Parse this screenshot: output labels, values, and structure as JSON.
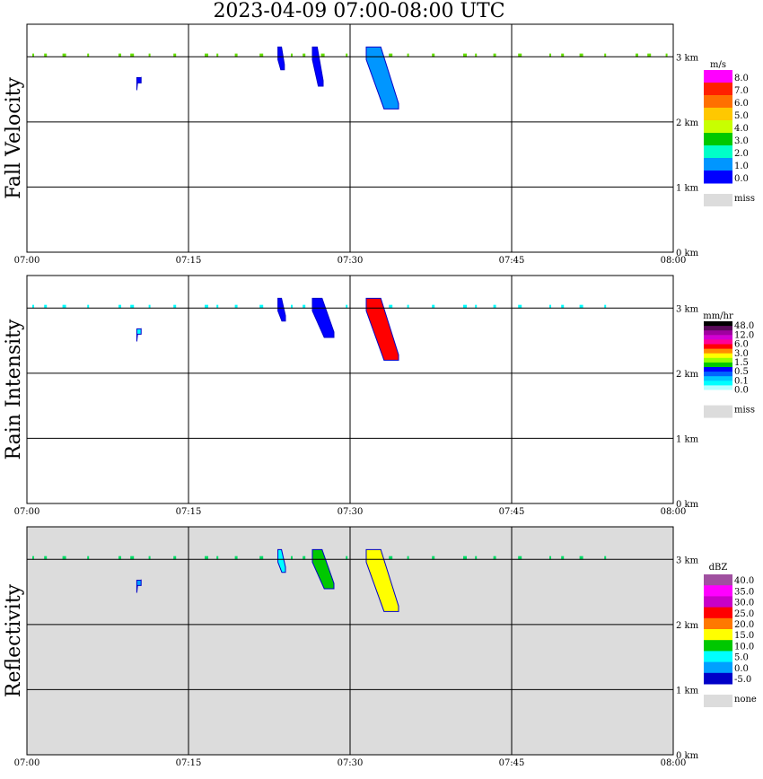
{
  "page_title": "2023-04-09   07:00-08:00 UTC",
  "chart_data": [
    {
      "type": "heatmap",
      "ylabel": "Fall Velocity",
      "x_ticks": [
        "07:00",
        "07:15",
        "07:30",
        "07:45",
        "08:00"
      ],
      "y_ticks": [
        "0 km",
        "1 km",
        "2 km",
        "3 km"
      ],
      "ylim": [
        0,
        3.5
      ],
      "background": "white",
      "colorbar": {
        "unit": "m/s",
        "levels": [
          "8.0",
          "7.0",
          "6.0",
          "5.0",
          "4.0",
          "3.0",
          "2.0",
          "1.0",
          "0.0"
        ],
        "colors": [
          "#ff00ff",
          "#ff2000",
          "#ff7000",
          "#ffc800",
          "#c8ff00",
          "#00c800",
          "#00ffc8",
          "#0096ff",
          "#0000ff"
        ],
        "missing_label": "miss",
        "missing_color": "#dcdcdc"
      },
      "features": [
        {
          "x": [
            0.5,
            60
          ],
          "y": [
            3.0,
            3.05
          ],
          "color": "#66dd00",
          "note": "sparse"
        },
        {
          "x": [
            23.3,
            23.9
          ],
          "y": [
            2.8,
            3.15
          ],
          "color": "#0000ff"
        },
        {
          "x": [
            26.5,
            27.5
          ],
          "y": [
            2.55,
            3.15
          ],
          "color": "#0000ff"
        },
        {
          "x": [
            31.5,
            34.5
          ],
          "y": [
            2.2,
            3.15
          ],
          "color": "#0096ff"
        },
        {
          "x": [
            10.2,
            10.6
          ],
          "y": [
            2.6,
            2.68
          ],
          "color": "#0000ff"
        }
      ]
    },
    {
      "type": "heatmap",
      "ylabel": "Rain Intensity",
      "x_ticks": [
        "07:00",
        "07:15",
        "07:30",
        "07:45",
        "08:00"
      ],
      "y_ticks": [
        "0 km",
        "1 km",
        "2 km",
        "3 km"
      ],
      "ylim": [
        0,
        3.5
      ],
      "background": "white",
      "colorbar": {
        "unit": "mm/hr",
        "levels": [
          "48.0",
          "12.0",
          "6.0",
          "3.0",
          "1.5",
          "0.5",
          "0.1",
          "0.0"
        ],
        "colors": [
          "#000000",
          "#5a0a5a",
          "#a000a0",
          "#d200d2",
          "#ff0096",
          "#ff0000",
          "#ff8c00",
          "#ffff00",
          "#96ff00",
          "#00c800",
          "#0000ff",
          "#0064ff",
          "#00c8ff",
          "#00ffff",
          "#b4ffff",
          "#ffffff"
        ],
        "missing_label": "miss",
        "missing_color": "#dcdcdc"
      },
      "features": [
        {
          "x": [
            0.5,
            55
          ],
          "y": [
            3.0,
            3.05
          ],
          "color": "#00ffff",
          "note": "sparse"
        },
        {
          "x": [
            23.3,
            24
          ],
          "y": [
            2.8,
            3.15
          ],
          "color": "#0000ff"
        },
        {
          "x": [
            26.5,
            28.5
          ],
          "y": [
            2.55,
            3.15
          ],
          "color": "#0000ff"
        },
        {
          "x": [
            31.5,
            34.5
          ],
          "y": [
            2.2,
            3.15
          ],
          "color": "#ff0000"
        },
        {
          "x": [
            10.2,
            10.6
          ],
          "y": [
            2.6,
            2.68
          ],
          "color": "#00ffff"
        }
      ]
    },
    {
      "type": "heatmap",
      "ylabel": "Reflectivity",
      "x_ticks": [
        "07:00",
        "07:15",
        "07:30",
        "07:45",
        "08:00"
      ],
      "y_ticks": [
        "0 km",
        "1 km",
        "2 km",
        "3 km"
      ],
      "ylim": [
        0,
        3.5
      ],
      "background": "#dcdcdc",
      "colorbar": {
        "unit": "dBZ",
        "levels": [
          "40.0",
          "35.0",
          "30.0",
          "25.0",
          "20.0",
          "15.0",
          "10.0",
          "5.0",
          "0.0",
          "-5.0"
        ],
        "colors": [
          "#a050a0",
          "#ff00ff",
          "#c800c8",
          "#ff0000",
          "#ff7800",
          "#ffff00",
          "#00c800",
          "#00ffff",
          "#00a0ff",
          "#0000c8"
        ],
        "missing_label": "none",
        "missing_color": "#dcdcdc"
      },
      "features": [
        {
          "x": [
            0.5,
            55
          ],
          "y": [
            3.0,
            3.05
          ],
          "color": "#00dd66",
          "note": "sparse"
        },
        {
          "x": [
            23.3,
            24
          ],
          "y": [
            2.8,
            3.15
          ],
          "color": "#00ffff"
        },
        {
          "x": [
            26.5,
            28.5
          ],
          "y": [
            2.55,
            3.15
          ],
          "color": "#00c800"
        },
        {
          "x": [
            31.5,
            34.5
          ],
          "y": [
            2.2,
            3.15
          ],
          "color": "#ffff00"
        },
        {
          "x": [
            10.2,
            10.6
          ],
          "y": [
            2.6,
            2.68
          ],
          "color": "#00a0ff"
        }
      ]
    }
  ]
}
